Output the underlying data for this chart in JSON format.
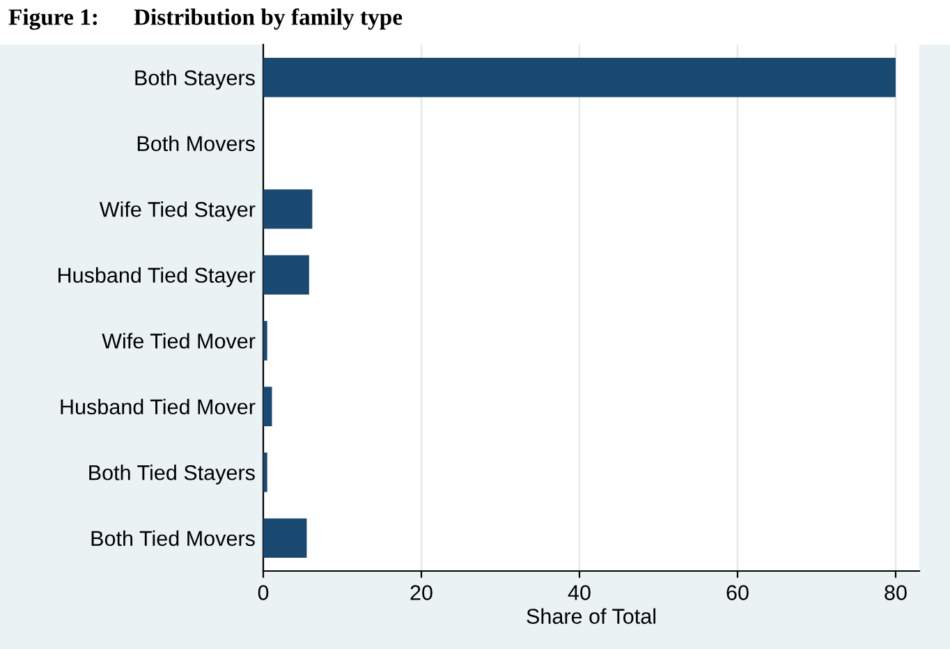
{
  "chart_data": {
    "type": "bar",
    "orientation": "horizontal",
    "title": "Figure 1:      Distribution by family type",
    "categories": [
      "Both Stayers",
      "Both Movers",
      "Wife Tied Stayer",
      "Husband Tied Stayer",
      "Wife Tied Mover",
      "Husband Tied Mover",
      "Both Tied Stayers",
      "Both Tied Movers"
    ],
    "values": [
      80.0,
      0,
      6.2,
      5.8,
      0.5,
      1.1,
      0.5,
      5.5
    ],
    "color": "#1a4a72",
    "xlabel": "Share of Total",
    "xlim": [
      0,
      83
    ],
    "xticks": [
      0,
      20,
      40,
      60,
      80
    ],
    "grid": "x"
  }
}
